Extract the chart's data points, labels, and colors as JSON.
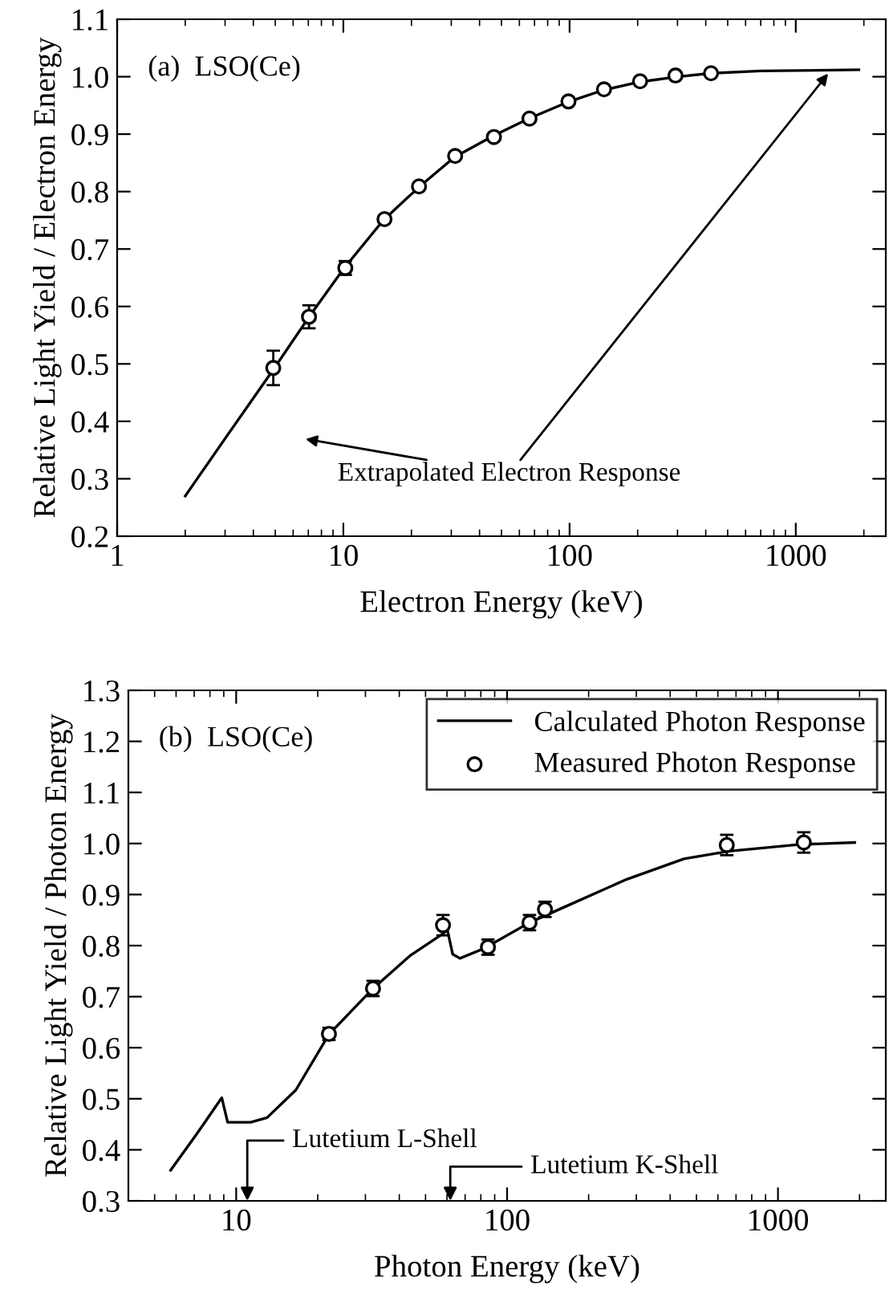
{
  "chart_data": [
    {
      "type": "line",
      "title": "(a)  LSO(Ce)",
      "xlabel": "Electron Energy (keV)",
      "ylabel": "Relative Light Yield / Electron Energy",
      "log": "x",
      "xlim": [
        1,
        2500
      ],
      "xticks": [
        1,
        10,
        100,
        1000
      ],
      "ylim": [
        0.2,
        1.1
      ],
      "yticks": [
        {
          "value": 0.2,
          "label": "0.2"
        },
        {
          "value": 0.3,
          "label": "0.3"
        },
        {
          "value": 0.4,
          "label": "0.4"
        },
        {
          "value": 0.5,
          "label": "0.5"
        },
        {
          "value": 0.6,
          "label": "0.6"
        },
        {
          "value": 0.7,
          "label": "0.7"
        },
        {
          "value": 0.8,
          "label": "0.8"
        },
        {
          "value": 0.9,
          "label": "0.9"
        },
        {
          "value": 1.0,
          "label": "1.0"
        },
        {
          "value": 1.1,
          "label": "1.1"
        }
      ],
      "grid": false,
      "legend": false,
      "series": [
        {
          "color": "#000000",
          "line_style": "solid",
          "marker": "none",
          "x": [
            2,
            3,
            4.9,
            7,
            10,
            15,
            21.6,
            31,
            46,
            66,
            100,
            142,
            205,
            300,
            422,
            700,
            1900
          ],
          "values": [
            0.27,
            0.37,
            0.49,
            0.58,
            0.665,
            0.75,
            0.808,
            0.86,
            0.897,
            0.927,
            0.957,
            0.977,
            0.991,
            1.0,
            1.006,
            1.01,
            1.012
          ]
        },
        {
          "type": "scatter",
          "color": "#000000",
          "marker": "circle",
          "x": [
            4.9,
            7.05,
            10.2,
            15.2,
            21.6,
            31.2,
            46.3,
            66.5,
            98.9,
            142,
            205,
            294,
            422
          ],
          "values": [
            0.493,
            0.582,
            0.667,
            0.752,
            0.809,
            0.862,
            0.895,
            0.927,
            0.957,
            0.978,
            0.992,
            1.002,
            1.006
          ],
          "errors": [
            0.03,
            0.02,
            0.012,
            null,
            null,
            null,
            null,
            null,
            null,
            null,
            null,
            null,
            null
          ]
        }
      ],
      "annotations": [
        "Extrapolated Electron Response"
      ]
    },
    {
      "type": "line",
      "title": "(b)  LSO(Ce)",
      "xlabel": "Photon Energy (keV)",
      "ylabel": "Relative Light Yield / Photon Energy",
      "log": "x",
      "xlim": [
        4,
        2500
      ],
      "xticks": [
        10,
        100,
        1000
      ],
      "ylim": [
        0.3,
        1.3
      ],
      "yticks": [
        {
          "value": 0.3,
          "label": "0.3"
        },
        {
          "value": 0.4,
          "label": "0.4"
        },
        {
          "value": 0.5,
          "label": "0.5"
        },
        {
          "value": 0.6,
          "label": "0.6"
        },
        {
          "value": 0.7,
          "label": "0.7"
        },
        {
          "value": 0.8,
          "label": "0.8"
        },
        {
          "value": 0.9,
          "label": "0.9"
        },
        {
          "value": 1.0,
          "label": "1.0"
        },
        {
          "value": 1.1,
          "label": "1.1"
        },
        {
          "value": 1.2,
          "label": "1.2"
        },
        {
          "value": 1.3,
          "label": "1.3"
        }
      ],
      "grid": false,
      "legend": "top right",
      "series": [
        {
          "name": "Calculated Photon Response",
          "color": "#000000",
          "line_style": "solid",
          "marker": "none",
          "x": [
            5.73,
            7.13,
            8.85,
            9.3,
            11.3,
            13.0,
            16.6,
            22.0,
            32.0,
            43.8,
            58.6,
            60,
            63,
            67,
            82,
            121,
            170,
            277,
            450,
            660,
            1190,
            1920
          ],
          "values": [
            0.36,
            0.43,
            0.502,
            0.454,
            0.454,
            0.463,
            0.517,
            0.626,
            0.716,
            0.78,
            0.825,
            0.834,
            0.783,
            0.775,
            0.794,
            0.845,
            0.88,
            0.93,
            0.97,
            0.985,
            0.998,
            1.002
          ]
        },
        {
          "type": "scatter",
          "name": "Measured Photon Response",
          "color": "#000000",
          "marker": "circle",
          "x": [
            22,
            32,
            58,
            85,
            121,
            138,
            647,
            1245
          ],
          "values": [
            0.627,
            0.716,
            0.84,
            0.797,
            0.845,
            0.871,
            0.997,
            1.002
          ],
          "errors": [
            0.012,
            0.015,
            0.02,
            0.015,
            0.015,
            0.015,
            0.02,
            0.02
          ]
        }
      ],
      "annotations": [
        "Lutetium L-Shell",
        "Lutetium K-Shell"
      ]
    }
  ]
}
